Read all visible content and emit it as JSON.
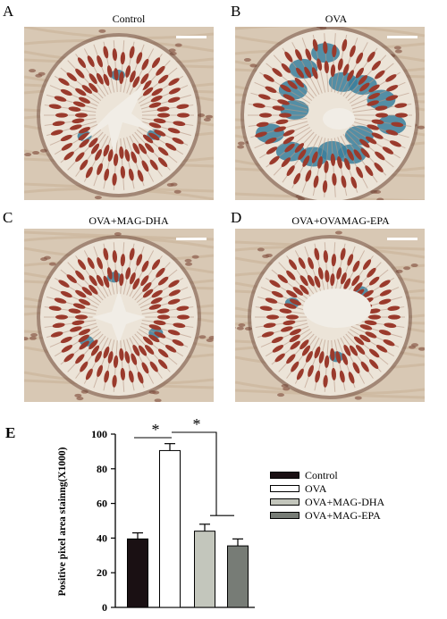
{
  "panels": [
    {
      "letter": "A",
      "title": "Control",
      "lumen": "cross"
    },
    {
      "letter": "B",
      "title": "OVA",
      "lumen": "blue"
    },
    {
      "letter": "C",
      "title": "OVA+MAG-DHA",
      "lumen": "star"
    },
    {
      "letter": "D",
      "title": "OVA+OVAMAG-EPA",
      "lumen": "open"
    }
  ],
  "colors": {
    "tissue_background": "#d8c8b4",
    "epithelium": "#ece4d8",
    "nucleus": "#9a3a2c",
    "mucus_blue": "#3a7f9c",
    "scale_bar": "#ffffff"
  },
  "chart_letter": "E",
  "chart_data": {
    "type": "bar",
    "categories": [
      "Control",
      "OVA",
      "OVA+MAG-DHA",
      "OVA+MAG-EPA"
    ],
    "values": [
      39.5,
      90.5,
      44,
      35.5
    ],
    "errors": [
      3.5,
      4,
      4,
      4
    ],
    "colors": [
      "#1a1013",
      "#ffffff",
      "#c3c6bc",
      "#777c76"
    ],
    "ylabel": "Positive pixel area stainng(X1000)",
    "ylim": [
      0,
      100
    ],
    "yticks": [
      "0",
      "20",
      "40",
      "60",
      "80",
      "100"
    ],
    "significance": [
      "*",
      "*"
    ]
  }
}
